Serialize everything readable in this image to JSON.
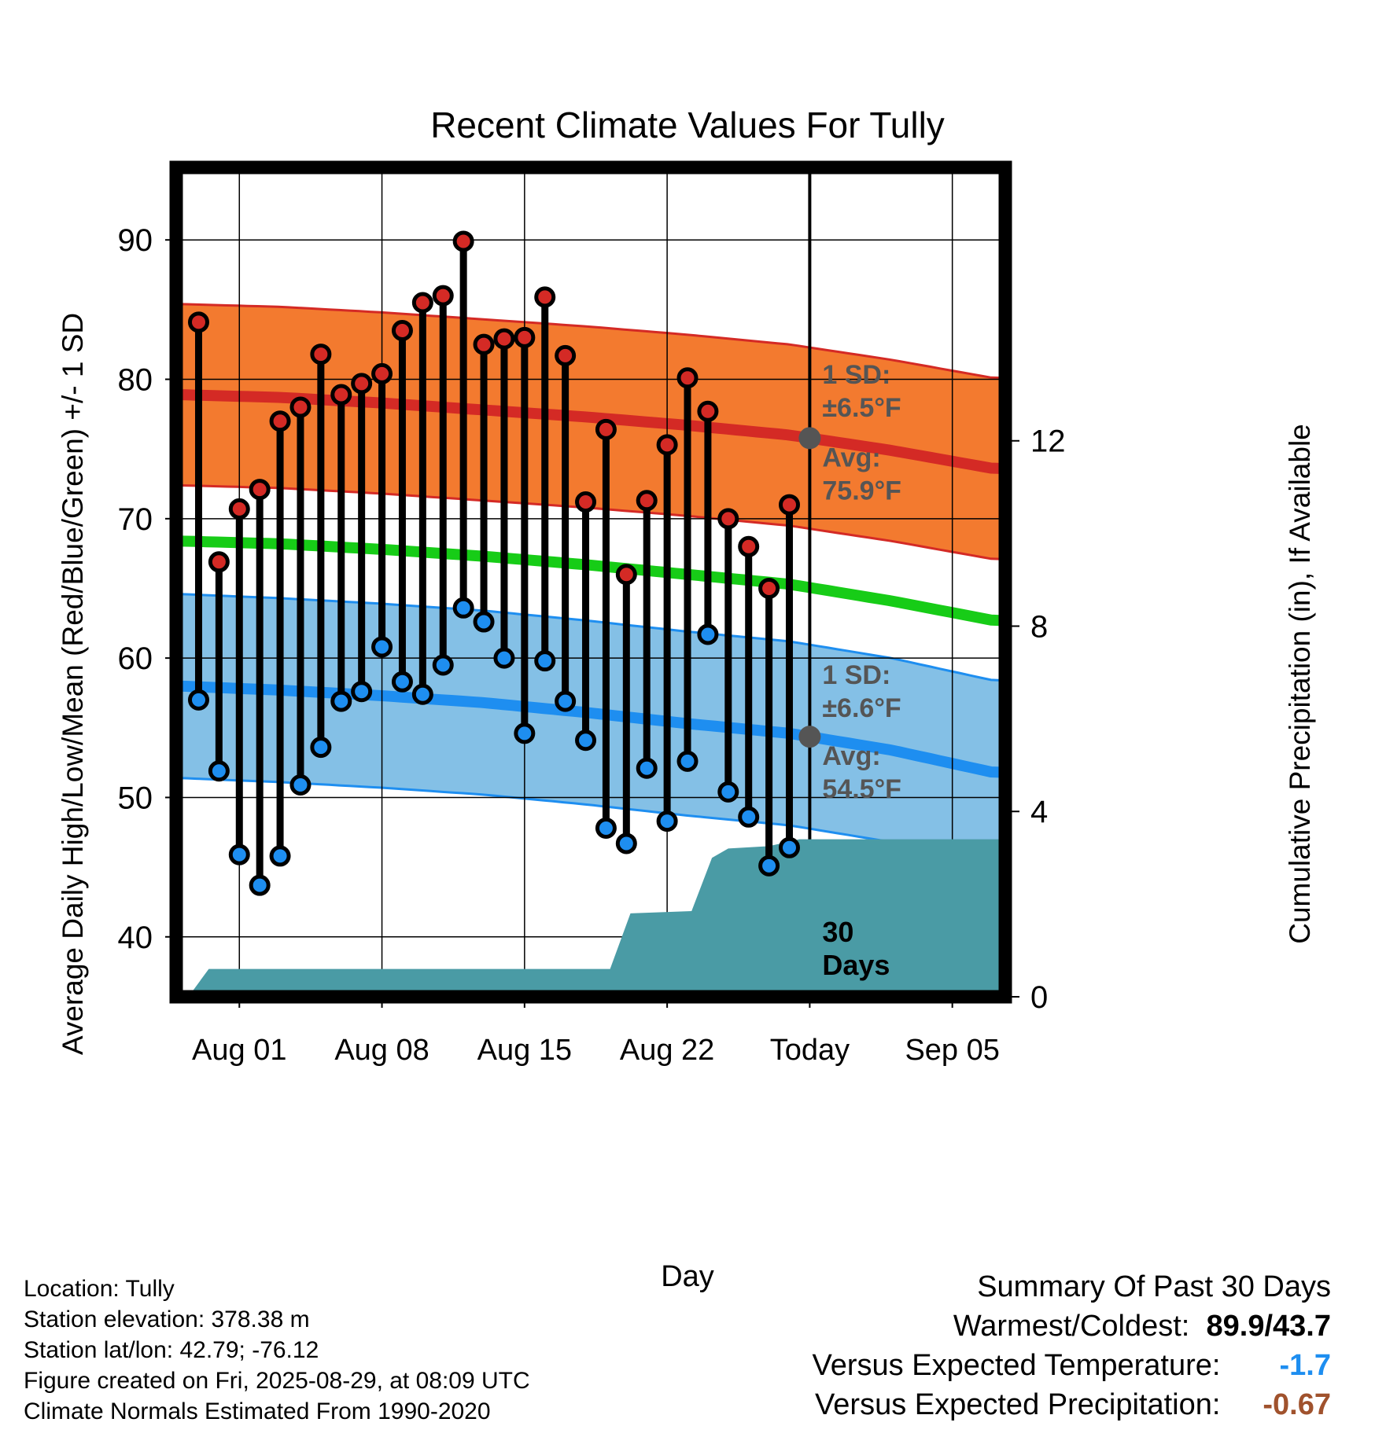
{
  "chart_data": {
    "type": "climate-range",
    "title": "Recent Climate Values For Tully",
    "xlabel": "Day",
    "ylabel": "Average Daily High/Low/Mean (Red/Blue/Green) +/- 1 SD",
    "y2label": "Cumulative Precipitation (in), If Available",
    "xlim": [
      -2.1,
      38.6
    ],
    "ylim": [
      35.7,
      95.2
    ],
    "y2lim": [
      0,
      17.9
    ],
    "x_ticks": [
      {
        "day": 1,
        "label": "Aug 01"
      },
      {
        "day": 8,
        "label": "Aug 08"
      },
      {
        "day": 15,
        "label": "Aug 15"
      },
      {
        "day": 22,
        "label": "Aug 22"
      },
      {
        "day": 29,
        "label": "Today"
      },
      {
        "day": 36,
        "label": "Sep 05"
      }
    ],
    "y_ticks": [
      40,
      50,
      60,
      70,
      80,
      90
    ],
    "y2_ticks": [
      0,
      4,
      8,
      12
    ],
    "grid": true,
    "today_day": 29,
    "days": [
      -1,
      0,
      1,
      2,
      3,
      4,
      5,
      6,
      7,
      8,
      9,
      10,
      11,
      12,
      13,
      14,
      15,
      16,
      17,
      18,
      19,
      20,
      21,
      22,
      23,
      24,
      25,
      26,
      27,
      28
    ],
    "highs": [
      84.1,
      66.9,
      70.7,
      72.1,
      77.0,
      78.0,
      81.8,
      78.9,
      79.7,
      80.4,
      83.5,
      85.5,
      86.0,
      89.9,
      82.5,
      82.9,
      83.0,
      85.9,
      81.7,
      71.2,
      76.4,
      66.0,
      71.3,
      75.3,
      80.1,
      77.7,
      70.0,
      68.0,
      65.0,
      71.0
    ],
    "lows": [
      57.0,
      51.9,
      45.9,
      43.7,
      45.8,
      50.9,
      53.6,
      56.9,
      57.6,
      60.8,
      58.3,
      57.4,
      59.5,
      63.6,
      62.6,
      60.0,
      54.6,
      59.8,
      56.9,
      54.1,
      47.8,
      46.7,
      52.1,
      48.3,
      52.6,
      61.7,
      50.4,
      48.6,
      45.1,
      46.4
    ],
    "normals": {
      "days": [
        -2,
        3,
        8,
        13,
        18,
        23,
        28,
        33,
        38
      ],
      "high_avg": [
        78.9,
        78.7,
        78.3,
        77.8,
        77.3,
        76.7,
        76.0,
        74.9,
        73.6
      ],
      "high_sd": 6.5,
      "low_avg": [
        58.0,
        57.7,
        57.3,
        56.8,
        56.1,
        55.3,
        54.6,
        53.4,
        51.8
      ],
      "low_sd": 6.6,
      "mean_avg": [
        68.4,
        68.2,
        67.8,
        67.3,
        66.7,
        66.0,
        65.3,
        64.1,
        62.7
      ]
    },
    "precip": {
      "days": [
        -1.5,
        -0.5,
        19.2,
        20.2,
        23.2,
        24.2,
        25.0,
        27.0,
        28.5,
        38.6
      ],
      "values": [
        0.0,
        0.6,
        0.6,
        1.8,
        1.85,
        3.0,
        3.2,
        3.25,
        3.4,
        3.4
      ]
    },
    "annotations": {
      "high_sd_line1": "1 SD:",
      "high_sd_line2": "±6.5°F",
      "high_avg_line1": "Avg:",
      "high_avg_line2": "75.9°F",
      "low_sd_line1": "1 SD:",
      "low_sd_line2": "±6.6°F",
      "low_avg_line1": "Avg:",
      "low_avg_line2": "54.5°F",
      "days_line1": "30",
      "days_line2": "Days"
    },
    "colors": {
      "high_band": "#f37a2f",
      "high_line": "#d42a25",
      "low_band": "#84c0e6",
      "low_line": "#1e8ef0",
      "mean_line": "#17cc17",
      "precip": "#4a9ba5",
      "high_marker": "#d42a25",
      "low_marker": "#1e8ef0",
      "annotation": "#555555",
      "today_marker": "#555555"
    }
  },
  "footer": {
    "location": "Location: Tully",
    "elevation": "Station elevation: 378.38 m",
    "latlon": "Station lat/lon: 42.79; -76.12",
    "created": "Figure created on Fri, 2025-08-29, at 08:09 UTC",
    "normals": "Climate Normals Estimated From 1990-2020"
  },
  "summary": {
    "title": "Summary Of Past 30 Days",
    "warm_cold_label": "Warmest/Coldest:",
    "warm_value": "89.9",
    "separator": "/",
    "cold_value": "43.7",
    "temp_label": "Versus Expected Temperature:",
    "temp_value": "-1.7",
    "temp_color": "#1e8ef0",
    "precip_label": "Versus Expected Precipitation:",
    "precip_value": "-0.67",
    "precip_color": "#a0522d"
  }
}
